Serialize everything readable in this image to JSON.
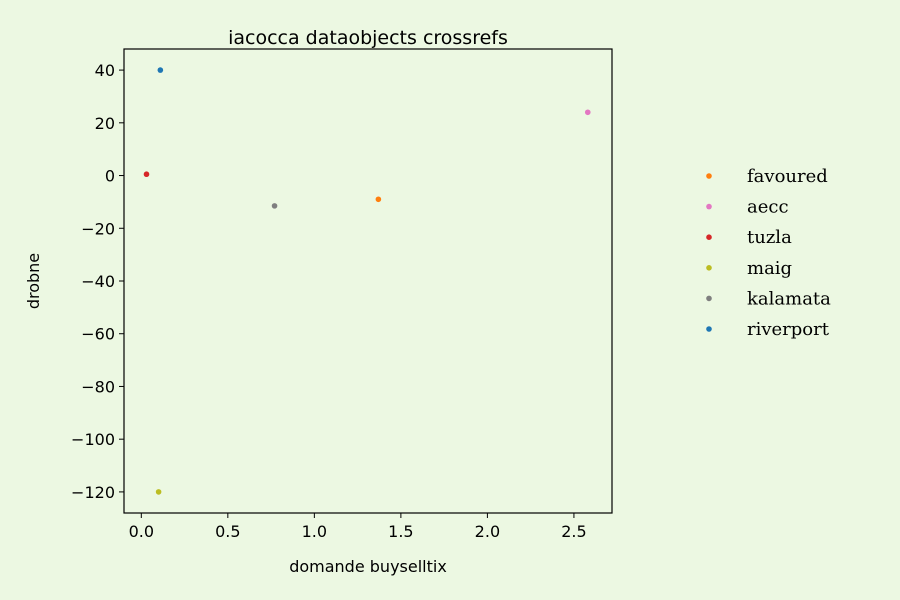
{
  "chart_data": {
    "type": "scatter",
    "title": "iacocca dataobjects crossrefs",
    "xlabel": "domande buyselltix",
    "ylabel": "drobne",
    "xlim": [
      -0.1,
      2.72
    ],
    "ylim": [
      -128,
      48
    ],
    "xticks": [
      0.0,
      0.5,
      1.0,
      1.5,
      2.0,
      2.5
    ],
    "xtick_labels": [
      "0.0",
      "0.5",
      "1.0",
      "1.5",
      "2.0",
      "2.5"
    ],
    "yticks": [
      40,
      20,
      0,
      -20,
      -40,
      -60,
      -80,
      -100,
      -120
    ],
    "ytick_labels": [
      "40",
      "20",
      "0",
      "−20",
      "−40",
      "−60",
      "−80",
      "−100",
      "−120"
    ],
    "grid": false,
    "legend_position": "right",
    "series": [
      {
        "name": "favoured",
        "color": "#ff7f0e",
        "points": [
          [
            1.37,
            -9
          ]
        ]
      },
      {
        "name": "aecc",
        "color": "#e377c2",
        "points": [
          [
            2.58,
            24
          ]
        ]
      },
      {
        "name": "tuzla",
        "color": "#d62728",
        "points": [
          [
            0.03,
            0.5
          ]
        ]
      },
      {
        "name": "maig",
        "color": "#bcbd22",
        "points": [
          [
            0.1,
            -120
          ]
        ]
      },
      {
        "name": "kalamata",
        "color": "#7f7f7f",
        "points": [
          [
            0.77,
            -11.5
          ]
        ]
      },
      {
        "name": "riverport",
        "color": "#1f77b4",
        "points": [
          [
            0.11,
            40
          ]
        ]
      }
    ]
  }
}
